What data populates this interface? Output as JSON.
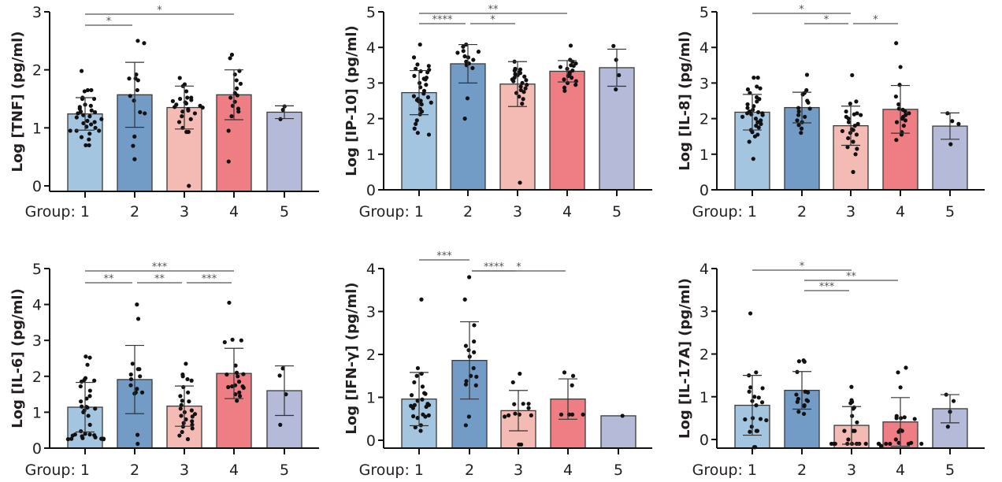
{
  "figure": {
    "xlabel_prefix": "Group:",
    "colors": [
      "#a3c5e0",
      "#729bc6",
      "#f4bab4",
      "#ef7e84",
      "#b5bad8"
    ]
  },
  "chart_data": [
    {
      "type": "bar",
      "title": "",
      "ylabel": "Log [TNF] (pg/ml)",
      "xlabel": "Group",
      "categories": [
        "1",
        "2",
        "3",
        "4",
        "5"
      ],
      "ylim": [
        0,
        3
      ],
      "yticks": [
        0,
        1,
        2,
        3
      ],
      "values": [
        1.24,
        1.57,
        1.35,
        1.57,
        1.27
      ],
      "error_sd": [
        0.28,
        0.56,
        0.37,
        0.43,
        0.11
      ],
      "points": [
        [
          1.98,
          1.65,
          1.65,
          1.63,
          1.52,
          1.5,
          1.5,
          1.4,
          1.38,
          1.36,
          1.33,
          1.3,
          1.28,
          1.27,
          1.25,
          1.22,
          1.2,
          1.18,
          1.15,
          1.12,
          1.1,
          1.08,
          1.06,
          1.02,
          1.0,
          0.95,
          0.95,
          0.95,
          0.9,
          0.84,
          0.8,
          0.7,
          0.7
        ],
        [
          2.5,
          2.46,
          1.92,
          1.85,
          1.85,
          1.82,
          1.65,
          1.55,
          1.47,
          1.27,
          1.25,
          0.85,
          0.69,
          0.46
        ],
        [
          1.86,
          1.75,
          1.72,
          1.63,
          1.52,
          1.52,
          1.5,
          1.48,
          1.46,
          1.44,
          1.42,
          1.4,
          1.38,
          1.36,
          1.35,
          1.32,
          1.3,
          1.28,
          1.25,
          1.2,
          1.15,
          1.1,
          1.0,
          0.93,
          0.93,
          0.0
        ],
        [
          2.26,
          2.2,
          1.98,
          1.92,
          1.82,
          1.76,
          1.68,
          1.6,
          1.56,
          1.52,
          1.45,
          1.38,
          1.33,
          1.28,
          1.2,
          0.95,
          0.42
        ],
        [
          1.37,
          1.31,
          1.15
        ]
      ],
      "significance": [
        {
          "from": 1,
          "to": 4,
          "label": "*"
        },
        {
          "from": 1,
          "to": 2,
          "label": "*"
        }
      ]
    },
    {
      "type": "bar",
      "title": "",
      "ylabel": "Log [IP-10] (pg/ml)",
      "xlabel": "Group",
      "categories": [
        "1",
        "2",
        "3",
        "4",
        "5"
      ],
      "ylim": [
        0,
        5
      ],
      "yticks": [
        0,
        1,
        2,
        3,
        4,
        5
      ],
      "values": [
        2.73,
        3.54,
        2.97,
        3.33,
        3.43
      ],
      "error_sd": [
        0.62,
        0.54,
        0.63,
        0.3,
        0.52
      ],
      "points": [
        [
          4.08,
          3.72,
          3.52,
          3.48,
          3.4,
          3.37,
          3.33,
          3.3,
          3.2,
          3.15,
          3.12,
          3.1,
          3.0,
          2.95,
          2.88,
          2.78,
          2.7,
          2.63,
          2.6,
          2.55,
          2.52,
          2.5,
          2.48,
          2.45,
          2.4,
          2.27,
          2.2,
          2.12,
          1.95,
          1.85,
          1.72,
          1.6,
          1.55
        ],
        [
          4.08,
          4.02,
          3.9,
          3.88,
          3.85,
          3.75,
          3.72,
          3.65,
          3.6,
          3.55,
          3.5,
          3.42,
          2.57,
          2.0
        ],
        [
          3.6,
          3.4,
          3.38,
          3.35,
          3.3,
          3.28,
          3.25,
          3.22,
          3.18,
          3.15,
          3.1,
          3.08,
          3.05,
          3.0,
          2.95,
          2.9,
          2.85,
          2.8,
          2.75,
          2.72,
          2.62,
          2.55,
          2.42,
          0.2
        ],
        [
          4.05,
          3.65,
          3.6,
          3.55,
          3.5,
          3.48,
          3.45,
          3.4,
          3.35,
          3.3,
          3.25,
          3.2,
          3.15,
          3.1,
          3.05,
          3.0,
          2.95,
          2.87,
          2.78
        ],
        [
          4.04,
          3.65,
          3.22,
          2.82
        ]
      ],
      "significance": [
        {
          "from": 1,
          "to": 4,
          "label": "**"
        },
        {
          "from": 1,
          "to": 2,
          "label": "****"
        },
        {
          "from": 2,
          "to": 3,
          "label": "*"
        }
      ]
    },
    {
      "type": "bar",
      "title": "",
      "ylabel": "Log [IL-8] (pg/ml)",
      "xlabel": "Group",
      "categories": [
        "1",
        "2",
        "3",
        "4",
        "5"
      ],
      "ylim": [
        0,
        5
      ],
      "yticks": [
        0,
        1,
        2,
        3,
        4,
        5
      ],
      "values": [
        2.18,
        2.31,
        1.8,
        2.26,
        1.79
      ],
      "error_sd": [
        0.5,
        0.43,
        0.55,
        0.67,
        0.37
      ],
      "points": [
        [
          3.15,
          3.15,
          2.9,
          2.85,
          2.82,
          2.72,
          2.6,
          2.55,
          2.48,
          2.4,
          2.35,
          2.3,
          2.25,
          2.2,
          2.18,
          2.15,
          2.15,
          2.12,
          2.1,
          2.05,
          2.0,
          1.95,
          1.9,
          1.85,
          1.8,
          1.75,
          1.68,
          1.62,
          1.55,
          1.5,
          1.35,
          0.87
        ],
        [
          3.23,
          2.8,
          2.72,
          2.68,
          2.5,
          2.45,
          2.3,
          2.28,
          2.2,
          2.1,
          2.05,
          1.95,
          1.9,
          1.82,
          1.72,
          1.6
        ],
        [
          3.22,
          2.48,
          2.42,
          2.2,
          2.15,
          2.12,
          2.1,
          2.05,
          2.0,
          1.9,
          1.85,
          1.8,
          1.7,
          1.68,
          1.65,
          1.6,
          1.55,
          1.45,
          1.35,
          1.2,
          1.15,
          1.0,
          0.5
        ],
        [
          4.12,
          3.45,
          2.95,
          2.62,
          2.4,
          2.28,
          2.25,
          2.2,
          2.15,
          2.1,
          2.05,
          2.0,
          1.95,
          1.9,
          1.8,
          1.62,
          1.55,
          1.4
        ],
        [
          2.15,
          1.93,
          1.85,
          1.28
        ]
      ],
      "significance": [
        {
          "from": 1,
          "to": 3,
          "label": "*"
        },
        {
          "from": 2,
          "to": 3,
          "label": "*"
        },
        {
          "from": 3,
          "to": 4,
          "label": "*"
        }
      ]
    },
    {
      "type": "bar",
      "title": "",
      "ylabel": "Log [IL-6] (pg/ml)",
      "xlabel": "Group",
      "categories": [
        "1",
        "2",
        "3",
        "4",
        "5"
      ],
      "ylim": [
        0,
        5
      ],
      "yticks": [
        0,
        1,
        2,
        3,
        4,
        5
      ],
      "values": [
        1.14,
        1.91,
        1.17,
        2.08,
        1.6
      ],
      "error_sd": [
        0.69,
        0.95,
        0.56,
        0.7,
        0.69
      ],
      "points": [
        [
          2.55,
          2.52,
          2.32,
          1.95,
          1.9,
          1.88,
          1.85,
          1.72,
          1.6,
          1.45,
          1.38,
          1.3,
          1.16,
          1.15,
          1.13,
          1.1,
          1.05,
          1.0,
          0.9,
          0.65,
          0.47,
          0.4,
          0.38,
          0.38,
          0.36,
          0.35,
          0.33,
          0.3,
          0.28,
          0.26,
          0.26,
          0.26,
          0.25,
          0.25
        ],
        [
          4.0,
          3.6,
          2.35,
          2.2,
          2.2,
          2.05,
          2.0,
          1.92,
          1.75,
          1.65,
          1.55,
          1.55,
          1.52,
          0.37,
          0.12
        ],
        [
          2.35,
          2.05,
          2.0,
          1.92,
          1.88,
          1.7,
          1.55,
          1.45,
          1.32,
          1.3,
          1.2,
          1.1,
          1.05,
          1.0,
          0.95,
          0.9,
          0.88,
          0.8,
          0.75,
          0.7,
          0.65,
          0.6,
          0.55,
          0.45,
          0.35,
          0.25
        ],
        [
          4.05,
          3.02,
          3.0,
          2.95,
          2.3,
          2.1,
          2.06,
          2.05,
          2.0,
          1.85,
          1.75,
          1.72,
          1.72,
          1.7,
          1.68,
          1.55,
          1.5,
          1.45,
          1.32
        ],
        [
          2.22,
          2.02,
          1.5,
          0.65
        ]
      ],
      "significance": [
        {
          "from": 1,
          "to": 4,
          "label": "***"
        },
        {
          "from": 1,
          "to": 2,
          "label": "**"
        },
        {
          "from": 2,
          "to": 3,
          "label": "**"
        },
        {
          "from": 3,
          "to": 4,
          "label": "***"
        }
      ]
    },
    {
      "type": "bar",
      "title": "",
      "ylabel": "Log [IFN-γ] (pg/ml)",
      "xlabel": "Group",
      "categories": [
        "1",
        "2",
        "3",
        "4",
        "5"
      ],
      "ylim": [
        -0.2,
        4
      ],
      "yticks": [
        0,
        1,
        2,
        3,
        4
      ],
      "values": [
        0.96,
        1.86,
        0.69,
        0.96,
        0.57
      ],
      "error_sd": [
        0.62,
        0.9,
        0.47,
        0.47,
        0
      ],
      "points": [
        [
          3.28,
          1.68,
          1.55,
          1.5,
          1.35,
          1.25,
          1.1,
          1.08,
          1.05,
          0.95,
          0.92,
          0.85,
          0.82,
          0.82,
          0.8,
          0.78,
          0.75,
          0.6,
          0.58,
          0.56,
          0.55,
          0.52,
          0.35,
          0.3,
          0.22
        ],
        [
          3.8,
          3.28,
          2.68,
          2.3,
          2.2,
          2.1,
          2.05,
          1.95,
          1.68,
          1.5,
          1.48,
          1.38,
          1.3,
          1.28,
          0.55,
          0.35
        ],
        [
          1.55,
          1.35,
          0.85,
          0.85,
          0.84,
          0.75,
          0.62,
          0.6,
          0.58,
          0.58,
          0.55,
          -0.1,
          -0.1
        ],
        [
          1.58,
          1.5,
          1.28,
          0.6,
          0.6,
          0.6,
          0.6
        ],
        [
          0.57
        ]
      ],
      "significance": [
        {
          "from": 1,
          "to": 2,
          "label": "***"
        },
        {
          "from": 2,
          "to": 4,
          "label": "*"
        },
        {
          "from": 2,
          "to": 3,
          "label": "****"
        }
      ]
    },
    {
      "type": "bar",
      "title": "",
      "ylabel": "Log [IL-17A] (pg/ml)",
      "xlabel": "Group",
      "categories": [
        "1",
        "2",
        "3",
        "4",
        "5"
      ],
      "ylim": [
        -0.2,
        4
      ],
      "yticks": [
        0,
        1,
        2,
        3,
        4
      ],
      "values": [
        0.8,
        1.15,
        0.33,
        0.41,
        0.72
      ],
      "error_sd": [
        0.7,
        0.44,
        0.44,
        0.57,
        0.33
      ],
      "points": [
        [
          2.95,
          1.57,
          1.5,
          1.22,
          1.2,
          1.12,
          1.0,
          0.98,
          0.9,
          0.87,
          0.8,
          0.5,
          0.48,
          0.47,
          0.45,
          0.3,
          0.2,
          0.2,
          0.18,
          -0.18,
          -0.18
        ],
        [
          1.85,
          1.83,
          1.82,
          1.58,
          1.12,
          1.1,
          1.05,
          0.95,
          0.92,
          0.9,
          0.88,
          0.8,
          0.78,
          0.65,
          0.6
        ],
        [
          1.23,
          0.92,
          0.88,
          0.85,
          0.75,
          0.72,
          0.55,
          0.4,
          0.2,
          0.2,
          0.2,
          0.0,
          -0.1,
          -0.1,
          -0.1,
          -0.1,
          -0.1,
          -0.1,
          -0.1,
          -0.1,
          -0.1,
          -0.15
        ],
        [
          1.68,
          1.57,
          1.22,
          0.55,
          0.52,
          0.5,
          0.5,
          0.48,
          0.22,
          0.2,
          0.18,
          0.0,
          -0.08,
          -0.08,
          -0.1,
          -0.1,
          -0.1,
          -0.1,
          -0.1
        ],
        [
          1.05,
          0.9,
          0.65,
          0.3
        ]
      ],
      "significance": [
        {
          "from": 1,
          "to": 3,
          "label": "*"
        },
        {
          "from": 2,
          "to": 4,
          "label": "**"
        },
        {
          "from": 2,
          "to": 3,
          "label": "***"
        }
      ]
    }
  ]
}
